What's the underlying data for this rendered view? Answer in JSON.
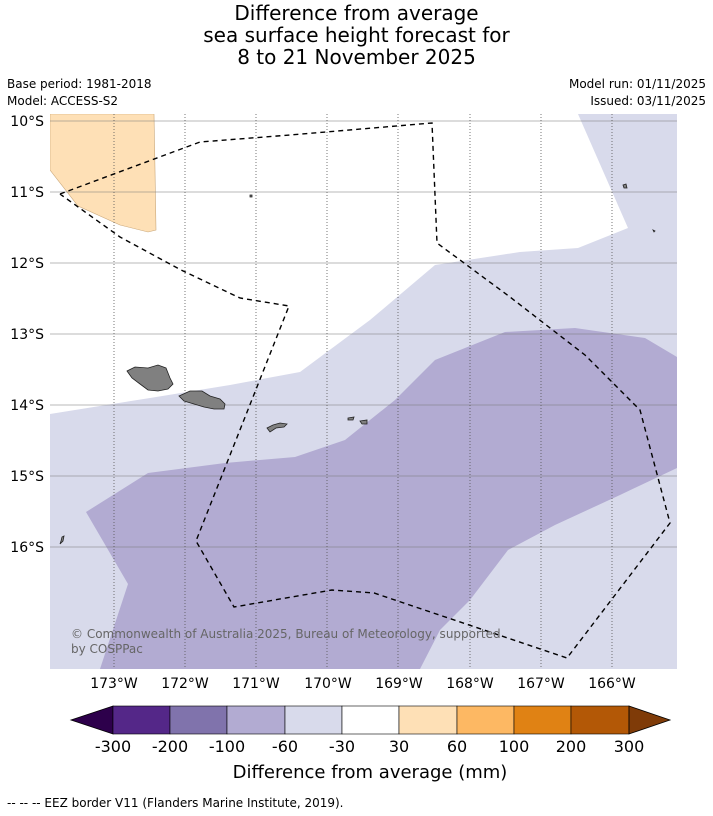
{
  "title": {
    "line1": "Difference from average",
    "line2": "sea surface height forecast for",
    "line3": "8 to 21 November 2025"
  },
  "meta": {
    "base_period": "Base period: 1981-2018",
    "model": "Model: ACCESS-S2",
    "model_run": "Model run: 01/11/2025",
    "issued": "Issued: 03/11/2025"
  },
  "map": {
    "lat_labels": [
      "10°S",
      "11°S",
      "12°S",
      "13°S",
      "14°S",
      "15°S",
      "16°S"
    ],
    "lon_labels": [
      "173°W",
      "172°W",
      "171°W",
      "170°W",
      "169°W",
      "168°W",
      "167°W",
      "166°W"
    ],
    "copyright_line1": "© Commonwealth of Australia 2025, Bureau of Meteorology, supported",
    "copyright_line2": "by COSPPac"
  },
  "colorbar": {
    "title": "Difference from average (mm)",
    "tick_labels": [
      "-300",
      "-200",
      "-100",
      "-60",
      "-30",
      "30",
      "60",
      "100",
      "200",
      "300"
    ],
    "colors": [
      "#2d004b",
      "#542788",
      "#8073ac",
      "#b2abd2",
      "#d8daeb",
      "#ffffff",
      "#fee0b6",
      "#fdb863",
      "#e08214",
      "#b35806",
      "#7f3b08"
    ]
  },
  "footer": {
    "legend": "--  --  -- EEZ border V11 (Flanders Marine Institute, 2019)."
  }
}
